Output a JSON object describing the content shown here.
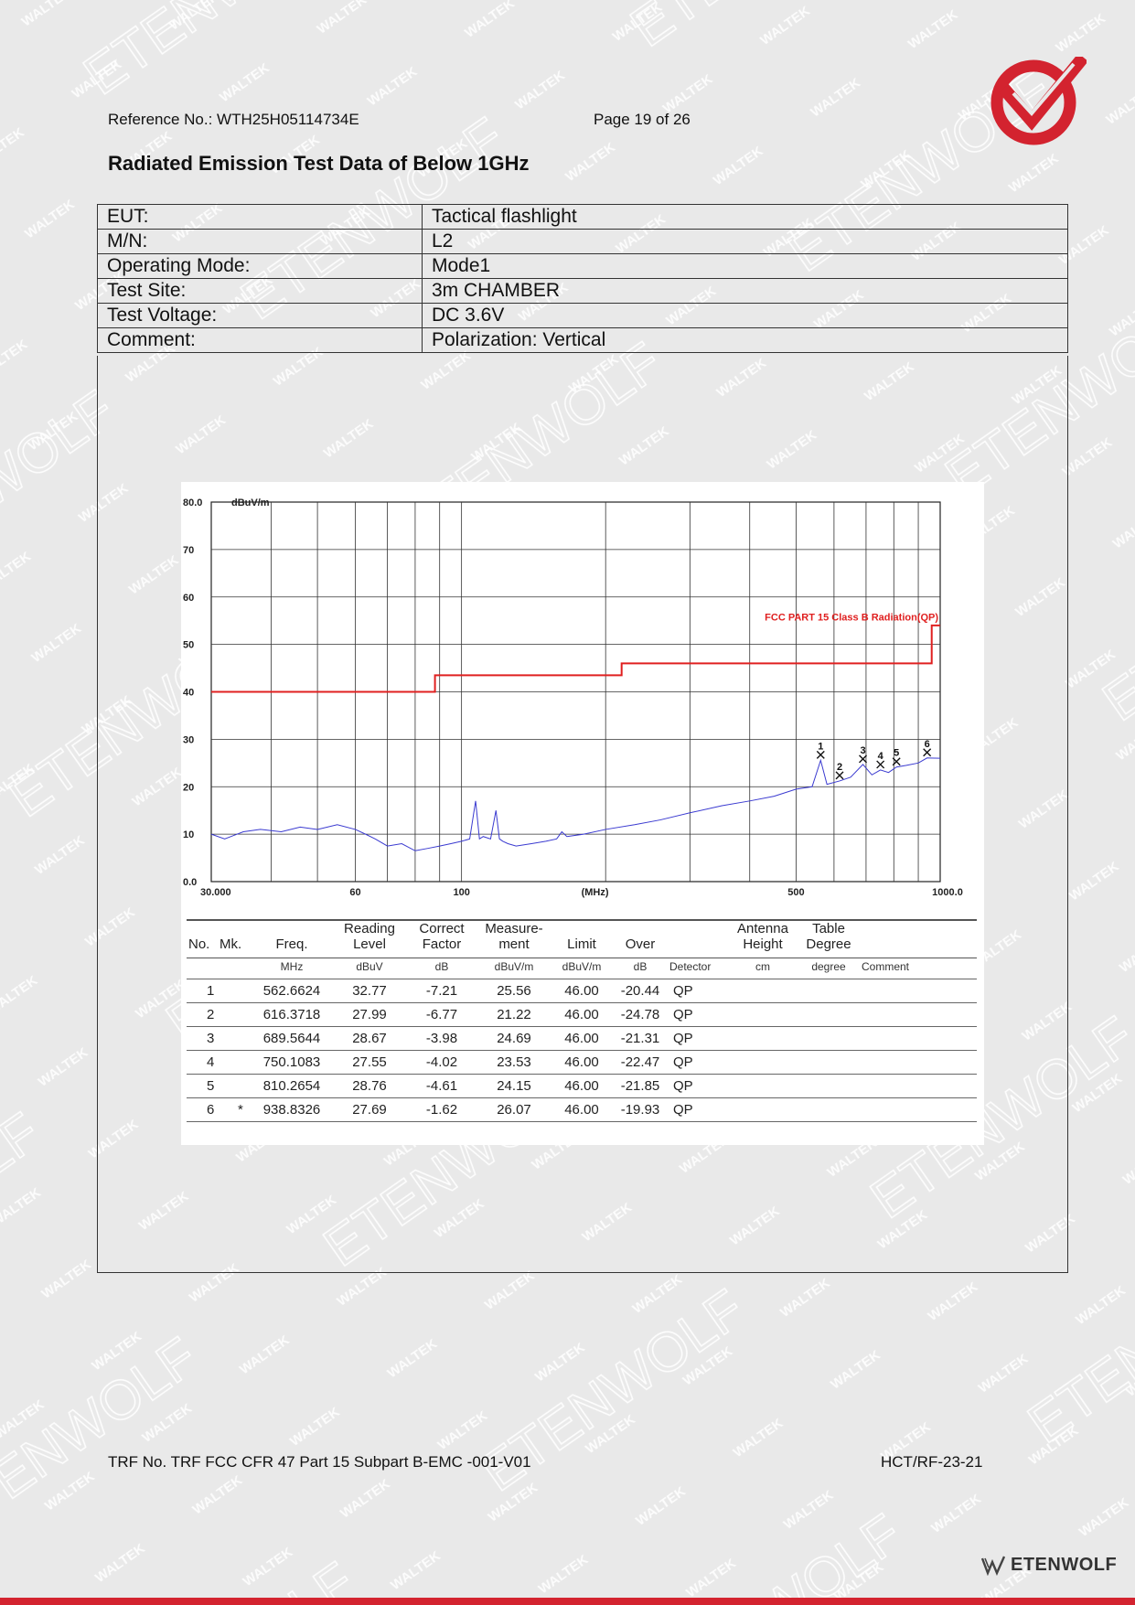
{
  "header": {
    "reference": "Reference No.: WTH25H05114734E",
    "page": "Page 19 of 26"
  },
  "title": "Radiated Emission Test Data of Below 1GHz",
  "info": [
    {
      "key": "EUT:",
      "value": "Tactical flashlight"
    },
    {
      "key": "M/N:",
      "value": "L2"
    },
    {
      "key": "Operating Mode:",
      "value": "Mode1"
    },
    {
      "key": "Test Site:",
      "value": "3m CHAMBER"
    },
    {
      "key": "Test Voltage:",
      "value": "DC 3.6V"
    },
    {
      "key": "Comment:",
      "value": "Polarization: Vertical"
    }
  ],
  "chart_data": {
    "type": "line",
    "ylabel": "dBuV/m",
    "xlabel": "(MHz)",
    "x_scale": "log",
    "xlim": [
      30,
      1000
    ],
    "ylim": [
      0,
      80
    ],
    "y_ticks": [
      "80.0",
      "70",
      "60",
      "50",
      "40",
      "30",
      "20",
      "10",
      "0.0"
    ],
    "x_ticks": [
      "30.000",
      "60",
      "100",
      "500",
      "1000.0"
    ],
    "grid": true,
    "limit_label": "FCC PART 15 Class B Radiation(QP)",
    "limit_color": "#e02020",
    "trace_color": "#3a3ad0",
    "series": [
      {
        "name": "FCC PART 15 Class B Radiation(QP)",
        "x": [
          30,
          88,
          88,
          216,
          216,
          960,
          960,
          1000
        ],
        "y": [
          40,
          40,
          43.5,
          43.5,
          46,
          46,
          54,
          54
        ]
      },
      {
        "x": [
          30,
          32,
          35,
          38,
          42,
          46,
          50,
          55,
          60,
          63,
          66,
          70,
          75,
          80,
          85,
          90,
          95,
          100,
          104,
          107,
          109,
          111,
          115,
          118,
          120,
          122,
          125,
          130,
          140,
          150,
          158,
          162,
          166,
          180,
          200,
          230,
          260,
          300,
          350,
          400,
          450,
          500,
          540,
          562.66,
          580,
          616.37,
          650,
          689.56,
          720,
          750.11,
          780,
          810.27,
          850,
          900,
          938.83,
          1000
        ],
        "y": [
          10,
          9,
          10.5,
          11,
          10.5,
          11.5,
          11,
          12,
          11,
          10,
          9,
          7.5,
          8,
          6.5,
          7,
          7.5,
          8,
          8.5,
          9,
          17,
          9,
          9.5,
          9,
          15,
          9,
          8.5,
          8,
          7.5,
          8,
          8.5,
          9,
          10.5,
          9.5,
          10,
          11,
          12,
          13,
          14.5,
          16,
          17,
          18,
          19.5,
          20,
          25.56,
          20.5,
          21.22,
          22,
          24.69,
          22.5,
          23.53,
          23,
          24.15,
          24.5,
          25,
          26.07,
          26
        ]
      }
    ],
    "markers": [
      "1",
      "2",
      "3",
      "4",
      "5",
      "6"
    ]
  },
  "table": {
    "headers": [
      {
        "l1": "",
        "l2": "No."
      },
      {
        "l1": "",
        "l2": "Mk."
      },
      {
        "l1": "",
        "l2": "Freq."
      },
      {
        "l1": "Reading",
        "l2": "Level"
      },
      {
        "l1": "Correct",
        "l2": "Factor"
      },
      {
        "l1": "Measure-",
        "l2": "ment"
      },
      {
        "l1": "",
        "l2": "Limit"
      },
      {
        "l1": "",
        "l2": "Over"
      },
      {
        "l1": "",
        "l2": ""
      },
      {
        "l1": "Antenna",
        "l2": "Height"
      },
      {
        "l1": "Table",
        "l2": "Degree"
      },
      {
        "l1": "",
        "l2": ""
      }
    ],
    "units": [
      "",
      "",
      "MHz",
      "dBuV",
      "dB",
      "dBuV/m",
      "dBuV/m",
      "dB",
      "Detector",
      "cm",
      "degree",
      "Comment"
    ],
    "rows": [
      [
        "1",
        "",
        "562.6624",
        "32.77",
        "-7.21",
        "25.56",
        "46.00",
        "-20.44",
        "QP",
        "",
        "",
        ""
      ],
      [
        "2",
        "",
        "616.3718",
        "27.99",
        "-6.77",
        "21.22",
        "46.00",
        "-24.78",
        "QP",
        "",
        "",
        ""
      ],
      [
        "3",
        "",
        "689.5644",
        "28.67",
        "-3.98",
        "24.69",
        "46.00",
        "-21.31",
        "QP",
        "",
        "",
        ""
      ],
      [
        "4",
        "",
        "750.1083",
        "27.55",
        "-4.02",
        "23.53",
        "46.00",
        "-22.47",
        "QP",
        "",
        "",
        ""
      ],
      [
        "5",
        "",
        "810.2654",
        "28.76",
        "-4.61",
        "24.15",
        "46.00",
        "-21.85",
        "QP",
        "",
        "",
        ""
      ],
      [
        "6",
        "*",
        "938.8326",
        "27.69",
        "-1.62",
        "26.07",
        "46.00",
        "-19.93",
        "QP",
        "",
        "",
        ""
      ]
    ]
  },
  "footer": {
    "trf": "TRF No. TRF FCC CFR 47 Part 15 Subpart B-EMC -001-V01",
    "code": "HCT/RF-23-21",
    "brand": "ETENWOLF"
  },
  "watermarks": [
    "WALTEK",
    "ETENWOLF"
  ],
  "colors": {
    "brand_red": "#d3232f",
    "limit_red": "#e02020",
    "trace_blue": "#3a3ad0"
  }
}
